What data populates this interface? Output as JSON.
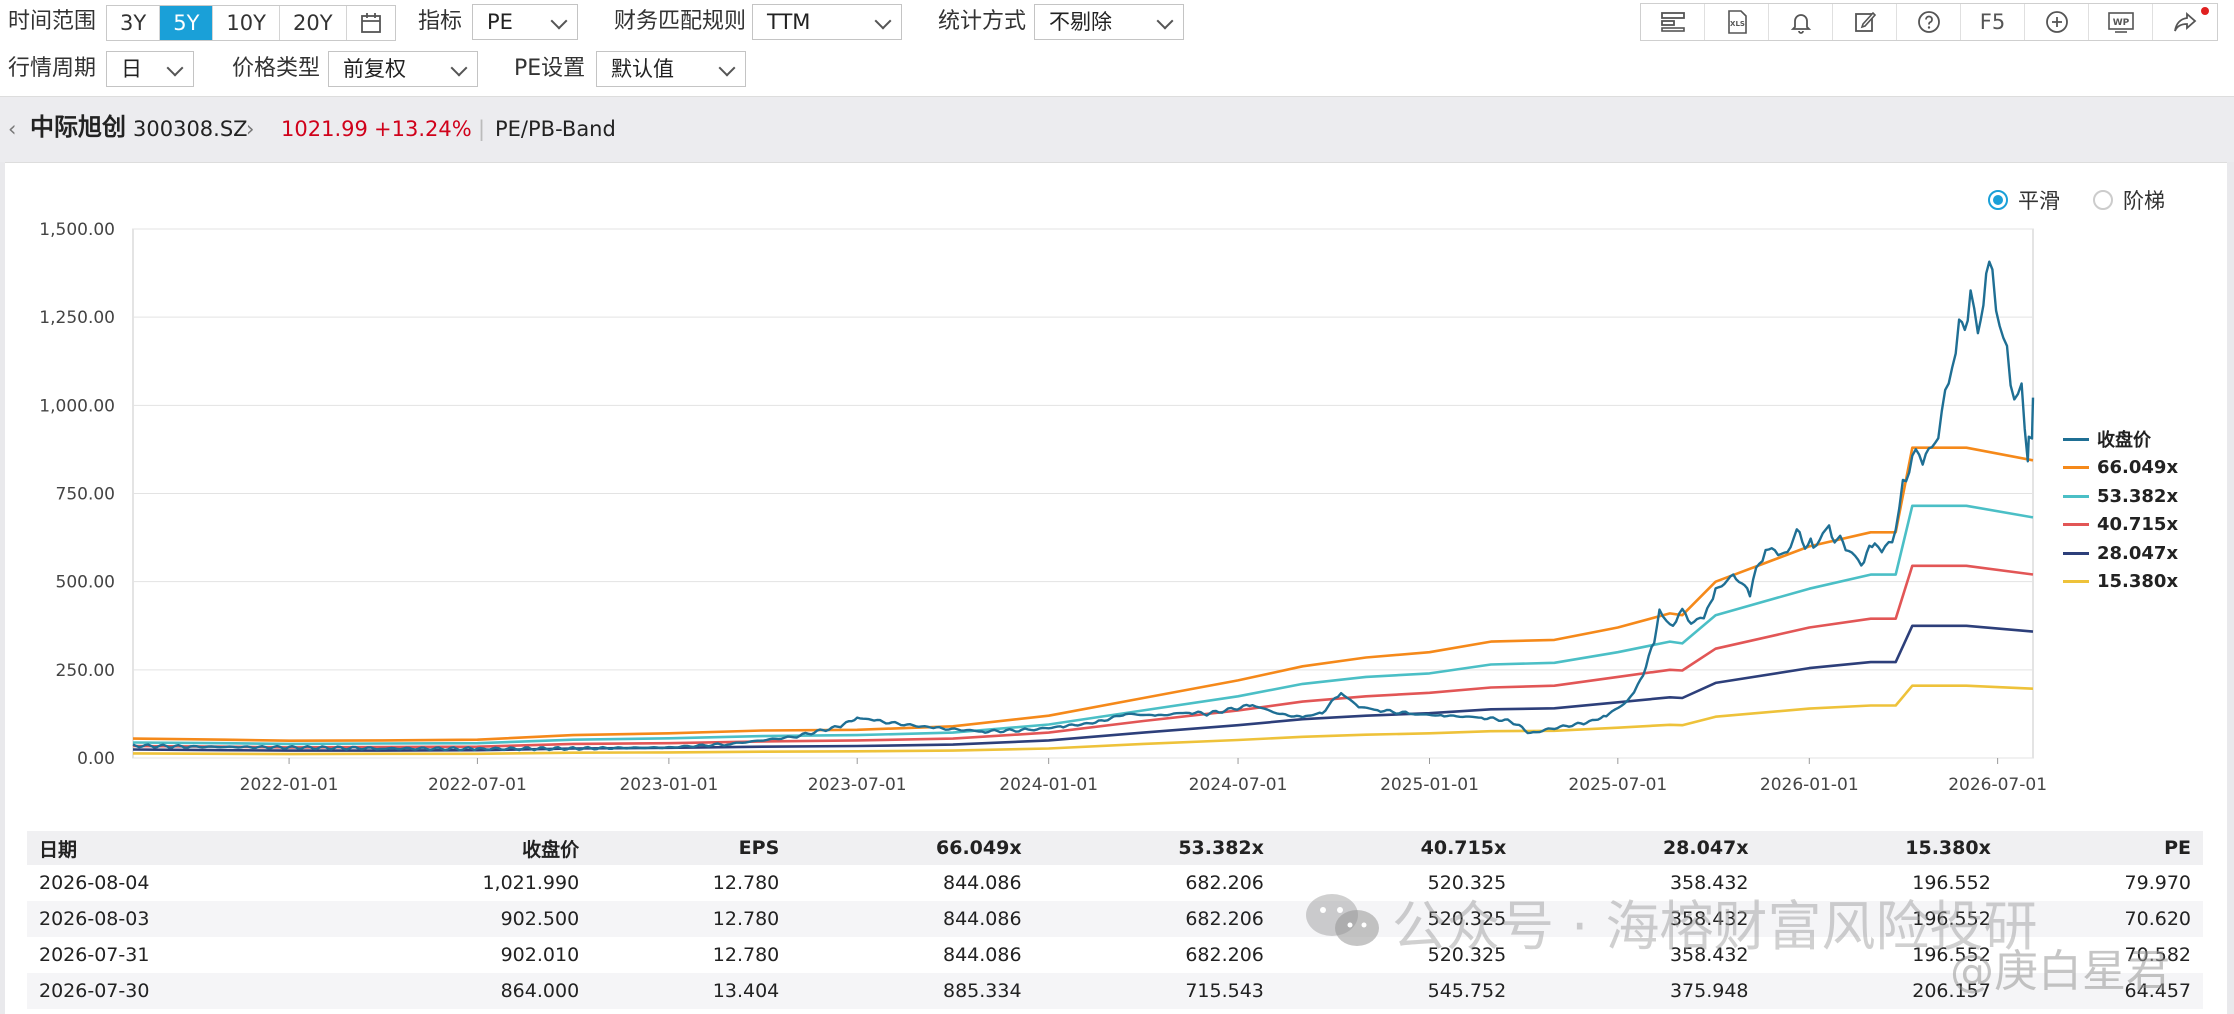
{
  "toolbar": {
    "time_range_label": "时间范围",
    "time_range_options": [
      "3Y",
      "5Y",
      "10Y",
      "20Y"
    ],
    "time_range_active": "5Y",
    "indicator_label": "指标",
    "indicator_value": "PE",
    "match_rule_label": "财务匹配规则",
    "match_rule_value": "TTM",
    "stat_method_label": "统计方式",
    "stat_method_value": "不剔除",
    "period_label": "行情周期",
    "period_value": "日",
    "price_type_label": "价格类型",
    "price_type_value": "前复权",
    "pe_setting_label": "PE设置",
    "pe_setting_value": "默认值",
    "icons": [
      "layout-icon",
      "xls-export-icon",
      "bell-icon",
      "edit-icon",
      "help-icon",
      "f5-refresh",
      "add-circle-icon",
      "wp-icon",
      "share-icon"
    ],
    "f5_label": "F5",
    "xls_label": "XLS",
    "wp_label": "WP"
  },
  "breadcrumb": {
    "stock_name": "中际旭创",
    "stock_code": "300308.SZ",
    "price": "1021.99",
    "change_pct": "+13.24%",
    "view": "PE/PB-Band"
  },
  "mode": {
    "smooth_label": "平滑",
    "step_label": "阶梯",
    "selected": "smooth"
  },
  "colors": {
    "close": "#1f6f94",
    "band1": "#f5891a",
    "band2": "#4bbfc6",
    "band3": "#e25656",
    "band4": "#2d3f7a",
    "band5": "#eec23a",
    "accent": "#1aa0d8",
    "up": "#d0021b"
  },
  "chart_data": {
    "type": "line",
    "title": "",
    "xlabel": "",
    "ylabel": "",
    "ylim": [
      0,
      1500
    ],
    "yticks": [
      "0.00",
      "250.00",
      "500.00",
      "750.00",
      "1,000.00",
      "1,250.00",
      "1,500.00"
    ],
    "xlim": [
      "2021-08-04",
      "2026-08-04"
    ],
    "xticks": [
      "2022-01-01",
      "2022-07-01",
      "2023-01-01",
      "2023-07-01",
      "2024-01-01",
      "2024-07-01",
      "2025-01-01",
      "2025-07-01",
      "2026-01-01",
      "2026-07-01"
    ],
    "grid": true,
    "legend_position": "right",
    "series": [
      {
        "name": "收盘价",
        "color_key": "close",
        "points": [
          [
            "2021-08-04",
            35
          ],
          [
            "2021-10-01",
            32
          ],
          [
            "2022-01-01",
            30
          ],
          [
            "2022-04-01",
            27
          ],
          [
            "2022-07-01",
            26
          ],
          [
            "2022-10-01",
            27
          ],
          [
            "2023-01-01",
            30
          ],
          [
            "2023-03-01",
            40
          ],
          [
            "2023-05-01",
            60
          ],
          [
            "2023-06-15",
            90
          ],
          [
            "2023-07-01",
            115
          ],
          [
            "2023-07-20",
            105
          ],
          [
            "2023-08-15",
            95
          ],
          [
            "2023-09-15",
            85
          ],
          [
            "2023-11-01",
            75
          ],
          [
            "2023-12-15",
            80
          ],
          [
            "2024-01-15",
            90
          ],
          [
            "2024-02-15",
            100
          ],
          [
            "2024-03-15",
            125
          ],
          [
            "2024-04-15",
            120
          ],
          [
            "2024-05-15",
            130
          ],
          [
            "2024-06-01",
            125
          ],
          [
            "2024-07-15",
            150
          ],
          [
            "2024-08-10",
            125
          ],
          [
            "2024-09-01",
            115
          ],
          [
            "2024-09-20",
            130
          ],
          [
            "2024-10-08",
            185
          ],
          [
            "2024-10-25",
            145
          ],
          [
            "2024-11-15",
            135
          ],
          [
            "2024-12-15",
            125
          ],
          [
            "2025-01-15",
            120
          ],
          [
            "2025-02-20",
            115
          ],
          [
            "2025-03-20",
            105
          ],
          [
            "2025-04-08",
            70
          ],
          [
            "2025-05-01",
            85
          ],
          [
            "2025-06-01",
            100
          ],
          [
            "2025-06-20",
            120
          ],
          [
            "2025-07-10",
            160
          ],
          [
            "2025-07-20",
            200
          ],
          [
            "2025-07-28",
            260
          ],
          [
            "2025-08-05",
            330
          ],
          [
            "2025-08-10",
            420
          ],
          [
            "2025-08-20",
            380
          ],
          [
            "2025-09-01",
            410
          ],
          [
            "2025-09-15",
            380
          ],
          [
            "2025-09-25",
            420
          ],
          [
            "2025-10-03",
            475
          ],
          [
            "2025-10-20",
            520
          ],
          [
            "2025-11-05",
            470
          ],
          [
            "2025-11-20",
            600
          ],
          [
            "2025-12-05",
            570
          ],
          [
            "2025-12-20",
            630
          ],
          [
            "2026-01-05",
            600
          ],
          [
            "2026-01-20",
            650
          ],
          [
            "2026-02-05",
            590
          ],
          [
            "2026-02-20",
            560
          ],
          [
            "2026-03-05",
            600
          ],
          [
            "2026-03-15",
            580
          ],
          [
            "2026-03-25",
            650
          ],
          [
            "2026-04-01",
            780
          ],
          [
            "2026-04-10",
            860
          ],
          [
            "2026-04-20",
            830
          ],
          [
            "2026-05-05",
            930
          ],
          [
            "2026-05-15",
            1050
          ],
          [
            "2026-05-25",
            1200
          ],
          [
            "2026-06-05",
            1300
          ],
          [
            "2026-06-12",
            1180
          ],
          [
            "2026-06-20",
            1370
          ],
          [
            "2026-06-26",
            1360
          ],
          [
            "2026-07-03",
            1200
          ],
          [
            "2026-07-10",
            1150
          ],
          [
            "2026-07-17",
            1000
          ],
          [
            "2026-07-24",
            1050
          ],
          [
            "2026-07-30",
            864.0
          ],
          [
            "2026-07-31",
            902.01
          ],
          [
            "2026-08-03",
            902.5
          ],
          [
            "2026-08-04",
            1021.99
          ]
        ]
      },
      {
        "name": "66.049x",
        "color_key": "band1",
        "points": [
          [
            "2021-08-04",
            55
          ],
          [
            "2021-11-01",
            52
          ],
          [
            "2022-01-01",
            49
          ],
          [
            "2022-04-01",
            50
          ],
          [
            "2022-07-01",
            52
          ],
          [
            "2022-10-01",
            65
          ],
          [
            "2023-01-01",
            70
          ],
          [
            "2023-04-01",
            78
          ],
          [
            "2023-07-01",
            80
          ],
          [
            "2023-10-01",
            90
          ],
          [
            "2024-01-01",
            120
          ],
          [
            "2024-04-01",
            170
          ],
          [
            "2024-07-01",
            220
          ],
          [
            "2024-09-01",
            260
          ],
          [
            "2024-11-01",
            285
          ],
          [
            "2025-01-01",
            300
          ],
          [
            "2025-03-01",
            330
          ],
          [
            "2025-05-01",
            335
          ],
          [
            "2025-07-01",
            370
          ],
          [
            "2025-08-20",
            410
          ],
          [
            "2025-09-01",
            405
          ],
          [
            "2025-10-03",
            500
          ],
          [
            "2026-01-01",
            600
          ],
          [
            "2026-03-01",
            640
          ],
          [
            "2026-03-25",
            640
          ],
          [
            "2026-04-10",
            880
          ],
          [
            "2026-06-01",
            880
          ],
          [
            "2026-08-04",
            844.086
          ]
        ]
      },
      {
        "name": "53.382x",
        "color_key": "band2",
        "points": [
          [
            "2021-08-04",
            44
          ],
          [
            "2021-11-01",
            42
          ],
          [
            "2022-01-01",
            40
          ],
          [
            "2022-04-01",
            41
          ],
          [
            "2022-07-01",
            42
          ],
          [
            "2022-10-01",
            52
          ],
          [
            "2023-01-01",
            56
          ],
          [
            "2023-04-01",
            62
          ],
          [
            "2023-07-01",
            65
          ],
          [
            "2023-10-01",
            72
          ],
          [
            "2024-01-01",
            95
          ],
          [
            "2024-04-01",
            135
          ],
          [
            "2024-07-01",
            175
          ],
          [
            "2024-09-01",
            210
          ],
          [
            "2024-11-01",
            230
          ],
          [
            "2025-01-01",
            240
          ],
          [
            "2025-03-01",
            265
          ],
          [
            "2025-05-01",
            270
          ],
          [
            "2025-07-01",
            300
          ],
          [
            "2025-08-20",
            330
          ],
          [
            "2025-09-01",
            325
          ],
          [
            "2025-10-03",
            405
          ],
          [
            "2026-01-01",
            480
          ],
          [
            "2026-03-01",
            520
          ],
          [
            "2026-03-25",
            520
          ],
          [
            "2026-04-10",
            715
          ],
          [
            "2026-06-01",
            715
          ],
          [
            "2026-08-04",
            682.206
          ]
        ]
      },
      {
        "name": "40.715x",
        "color_key": "band3",
        "points": [
          [
            "2021-08-04",
            34
          ],
          [
            "2021-11-01",
            32
          ],
          [
            "2022-01-01",
            30
          ],
          [
            "2022-04-01",
            31
          ],
          [
            "2022-07-01",
            32
          ],
          [
            "2022-10-01",
            40
          ],
          [
            "2023-01-01",
            42
          ],
          [
            "2023-04-01",
            47
          ],
          [
            "2023-07-01",
            50
          ],
          [
            "2023-10-01",
            55
          ],
          [
            "2024-01-01",
            72
          ],
          [
            "2024-04-01",
            105
          ],
          [
            "2024-07-01",
            135
          ],
          [
            "2024-09-01",
            160
          ],
          [
            "2024-11-01",
            175
          ],
          [
            "2025-01-01",
            185
          ],
          [
            "2025-03-01",
            200
          ],
          [
            "2025-05-01",
            205
          ],
          [
            "2025-07-01",
            230
          ],
          [
            "2025-08-20",
            250
          ],
          [
            "2025-09-01",
            248
          ],
          [
            "2025-10-03",
            310
          ],
          [
            "2026-01-01",
            370
          ],
          [
            "2026-03-01",
            395
          ],
          [
            "2026-03-25",
            395
          ],
          [
            "2026-04-10",
            545
          ],
          [
            "2026-06-01",
            545
          ],
          [
            "2026-08-04",
            520.325
          ]
        ]
      },
      {
        "name": "28.047x",
        "color_key": "band4",
        "points": [
          [
            "2021-08-04",
            24
          ],
          [
            "2021-11-01",
            22
          ],
          [
            "2022-01-01",
            21
          ],
          [
            "2022-04-01",
            21
          ],
          [
            "2022-07-01",
            22
          ],
          [
            "2022-10-01",
            27
          ],
          [
            "2023-01-01",
            29
          ],
          [
            "2023-04-01",
            32
          ],
          [
            "2023-07-01",
            34
          ],
          [
            "2023-10-01",
            38
          ],
          [
            "2024-01-01",
            50
          ],
          [
            "2024-04-01",
            72
          ],
          [
            "2024-07-01",
            93
          ],
          [
            "2024-09-01",
            110
          ],
          [
            "2024-11-01",
            120
          ],
          [
            "2025-01-01",
            127
          ],
          [
            "2025-03-01",
            138
          ],
          [
            "2025-05-01",
            141
          ],
          [
            "2025-07-01",
            158
          ],
          [
            "2025-08-20",
            172
          ],
          [
            "2025-09-01",
            170
          ],
          [
            "2025-10-03",
            213
          ],
          [
            "2026-01-01",
            255
          ],
          [
            "2026-03-01",
            272
          ],
          [
            "2026-03-25",
            272
          ],
          [
            "2026-04-10",
            375
          ],
          [
            "2026-06-01",
            375
          ],
          [
            "2026-08-04",
            358.432
          ]
        ]
      },
      {
        "name": "15.380x",
        "color_key": "band5",
        "points": [
          [
            "2021-08-04",
            13
          ],
          [
            "2021-11-01",
            12
          ],
          [
            "2022-01-01",
            11
          ],
          [
            "2022-04-01",
            12
          ],
          [
            "2022-07-01",
            12
          ],
          [
            "2022-10-01",
            15
          ],
          [
            "2023-01-01",
            16
          ],
          [
            "2023-04-01",
            18
          ],
          [
            "2023-07-01",
            19
          ],
          [
            "2023-10-01",
            21
          ],
          [
            "2024-01-01",
            27
          ],
          [
            "2024-04-01",
            40
          ],
          [
            "2024-07-01",
            51
          ],
          [
            "2024-09-01",
            60
          ],
          [
            "2024-11-01",
            66
          ],
          [
            "2025-01-01",
            70
          ],
          [
            "2025-03-01",
            76
          ],
          [
            "2025-05-01",
            77
          ],
          [
            "2025-07-01",
            86
          ],
          [
            "2025-08-20",
            94
          ],
          [
            "2025-09-01",
            93
          ],
          [
            "2025-10-03",
            117
          ],
          [
            "2026-01-01",
            140
          ],
          [
            "2026-03-01",
            149
          ],
          [
            "2026-03-25",
            149
          ],
          [
            "2026-04-10",
            205
          ],
          [
            "2026-06-01",
            205
          ],
          [
            "2026-08-04",
            196.552
          ]
        ]
      }
    ]
  },
  "table": {
    "headers": [
      "日期",
      "收盘价",
      "EPS",
      "66.049x",
      "53.382x",
      "40.715x",
      "28.047x",
      "15.380x",
      "PE"
    ],
    "rows": [
      [
        "2026-08-04",
        "1,021.990",
        "12.780",
        "844.086",
        "682.206",
        "520.325",
        "358.432",
        "196.552",
        "79.970"
      ],
      [
        "2026-08-03",
        "902.500",
        "12.780",
        "844.086",
        "682.206",
        "520.325",
        "358.432",
        "196.552",
        "70.620"
      ],
      [
        "2026-07-31",
        "902.010",
        "12.780",
        "844.086",
        "682.206",
        "520.325",
        "358.432",
        "196.552",
        "70.582"
      ],
      [
        "2026-07-30",
        "864.000",
        "13.404",
        "885.334",
        "715.543",
        "545.752",
        "375.948",
        "206.157",
        "64.457"
      ]
    ]
  },
  "watermark": {
    "text1": "公众号 · 海榕财富风险投研",
    "text2": "@庚白星君"
  }
}
